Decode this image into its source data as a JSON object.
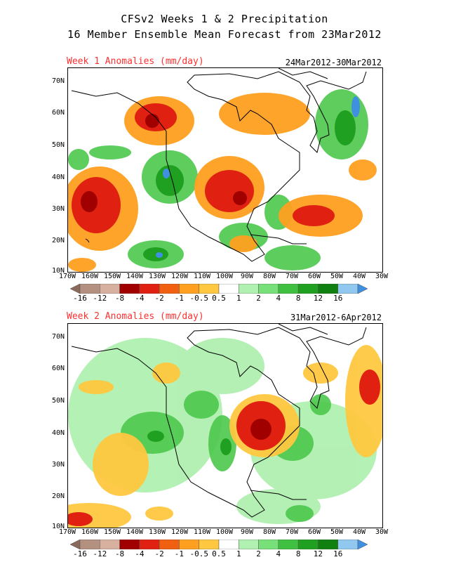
{
  "title_line1": "CFSv2 Weeks 1 & 2 Precipitation",
  "title_line2": "16 Member Ensemble Mean Forecast from 23Mar2012",
  "panels": [
    {
      "label": "Week 1 Anomalies (mm/day)",
      "dates": "24Mar2012-30Mar2012"
    },
    {
      "label": "Week 2 Anomalies (mm/day)",
      "dates": "31Mar2012-6Apr2012"
    }
  ],
  "lat_labels": [
    "70N",
    "60N",
    "50N",
    "40N",
    "30N",
    "20N",
    "10N"
  ],
  "lon_labels": [
    "170W",
    "160W",
    "150W",
    "140W",
    "130W",
    "120W",
    "110W",
    "100W",
    "90W",
    "80W",
    "70W",
    "60W",
    "50W",
    "40W",
    "30W"
  ],
  "colorbar_labels": [
    "-16",
    "-12",
    "-8",
    "-4",
    "-2",
    "-1",
    "-0.5",
    "0.5",
    "1",
    "2",
    "4",
    "8",
    "12",
    "16"
  ],
  "colorbar_colors": [
    "#8a6a5a",
    "#b39080",
    "#d8b0a0",
    "#a00000",
    "#e02010",
    "#f06010",
    "#ffa020",
    "#ffc840",
    "#ffffff",
    "#b0f0b0",
    "#78e078",
    "#40c040",
    "#20a020",
    "#108010",
    "#90c8f0",
    "#4090e0"
  ]
}
